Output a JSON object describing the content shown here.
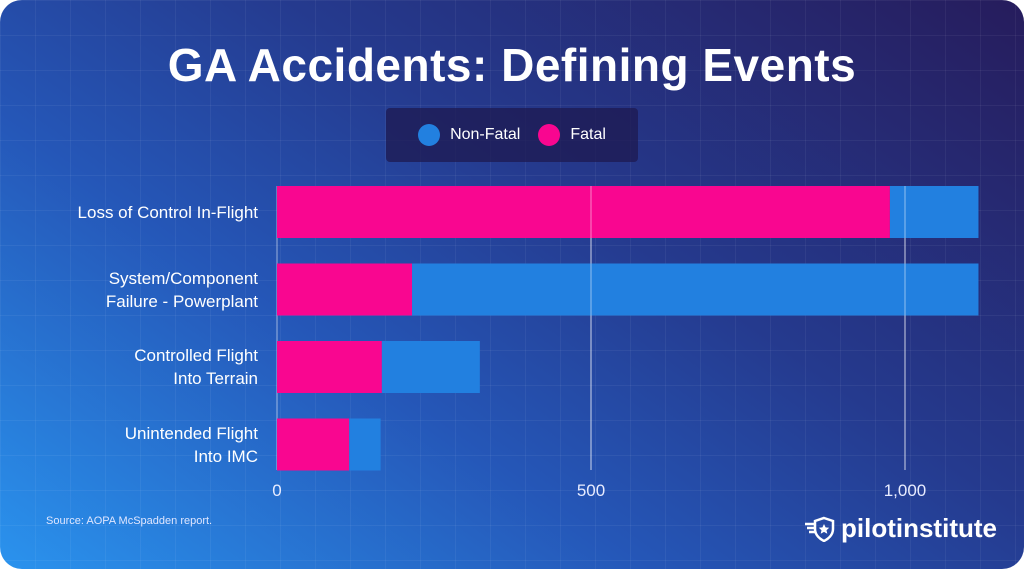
{
  "chart_data": {
    "type": "bar",
    "orientation": "horizontal",
    "stacked": true,
    "title": "GA Accidents: Defining Events",
    "categories": [
      "Loss of Control In-Flight",
      "System/Component \nFailure - Powerplant",
      "Controlled Flight \nInto Terrain",
      "Unintended Flight \nInto IMC"
    ],
    "series": [
      {
        "name": "Fatal",
        "color": "#f90690",
        "values": [
          976,
          215,
          167,
          115
        ]
      },
      {
        "name": "Non-Fatal",
        "color": "#2280e0",
        "values": [
          141,
          902,
          156,
          50
        ]
      }
    ],
    "xlim": [
      0,
      1117
    ],
    "xticks": [
      0,
      500,
      1000
    ],
    "xtick_labels": [
      "0",
      "500",
      "1,000"
    ],
    "grid": true,
    "legend_placement": "top-center",
    "legend": [
      {
        "name": "Non-Fatal",
        "color": "#2280e0"
      },
      {
        "name": "Fatal",
        "color": "#f90690"
      }
    ]
  },
  "source": "Source: AOPA McSpadden report.",
  "logo": {
    "text": "pilotinstitute",
    "icon": "shield-star-wings-icon"
  }
}
